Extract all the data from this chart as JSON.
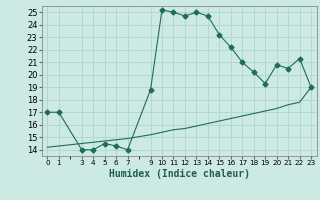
{
  "xlabel": "Humidex (Indice chaleur)",
  "background_color": "#cce9e3",
  "grid_color": "#b0d8d0",
  "line_color": "#1e6b5e",
  "x_ticks": [
    0,
    1,
    3,
    4,
    5,
    6,
    7,
    9,
    10,
    11,
    12,
    13,
    14,
    15,
    16,
    17,
    18,
    19,
    20,
    21,
    22,
    23
  ],
  "ylim": [
    13.5,
    25.5
  ],
  "xlim": [
    -0.5,
    23.5
  ],
  "yticks": [
    14,
    15,
    16,
    17,
    18,
    19,
    20,
    21,
    22,
    23,
    24,
    25
  ],
  "curve1_x": [
    0,
    1,
    3,
    4,
    5,
    6,
    7,
    9,
    10,
    11,
    12,
    13,
    14,
    15,
    16,
    17,
    18,
    19,
    20,
    21,
    22,
    23
  ],
  "curve1_y": [
    17.0,
    17.0,
    14.0,
    14.0,
    14.5,
    14.3,
    14.0,
    18.8,
    25.2,
    25.0,
    24.7,
    25.0,
    24.7,
    23.2,
    22.2,
    21.0,
    20.2,
    19.3,
    20.8,
    20.5,
    21.3,
    19.0
  ],
  "curve2_x": [
    0,
    1,
    3,
    4,
    5,
    6,
    7,
    9,
    10,
    11,
    12,
    13,
    14,
    15,
    16,
    17,
    18,
    19,
    20,
    21,
    22,
    23
  ],
  "curve2_y": [
    14.2,
    14.3,
    14.5,
    14.6,
    14.7,
    14.8,
    14.9,
    15.2,
    15.4,
    15.6,
    15.7,
    15.9,
    16.1,
    16.3,
    16.5,
    16.7,
    16.9,
    17.1,
    17.3,
    17.6,
    17.8,
    19.0
  ]
}
